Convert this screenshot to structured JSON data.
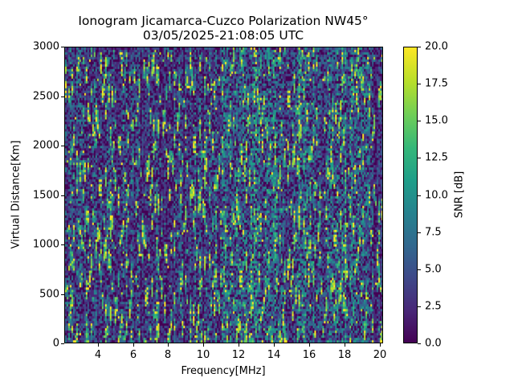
{
  "chart_data": {
    "type": "heatmap",
    "title": "Ionogram Jicamarca-Cuzco Polarization NW45°",
    "subtitle": "03/05/2025-21:08:05 UTC",
    "xlabel": "Frequency[MHz]",
    "ylabel": "Virtual Distance[Km]",
    "xlim": [
      2.1,
      20.2
    ],
    "ylim": [
      0,
      3000
    ],
    "xticks": [
      4,
      6,
      8,
      10,
      12,
      14,
      16,
      18,
      20
    ],
    "yticks": [
      0,
      500,
      1000,
      1500,
      2000,
      2500,
      3000
    ],
    "colorbar": {
      "label": "SNR [dB]",
      "range": [
        0.0,
        20.0
      ],
      "ticks": [
        "0.0",
        "2.5",
        "5.0",
        "7.5",
        "10.0",
        "12.5",
        "15.0",
        "17.5",
        "20.0"
      ],
      "colormap": "viridis"
    },
    "description": "Noisy SNR field, mostly 0-5 dB (dark purple/blue) with scattered vertical streaks up to ~20 dB; denser bright streaks around 11-14 MHz and 15-19 MHz",
    "grid": false
  },
  "colors": {
    "viridis": [
      "#440154",
      "#482878",
      "#3e4989",
      "#31688e",
      "#26828e",
      "#1f9e89",
      "#35b779",
      "#6ece58",
      "#b5de2b",
      "#fde725"
    ]
  }
}
